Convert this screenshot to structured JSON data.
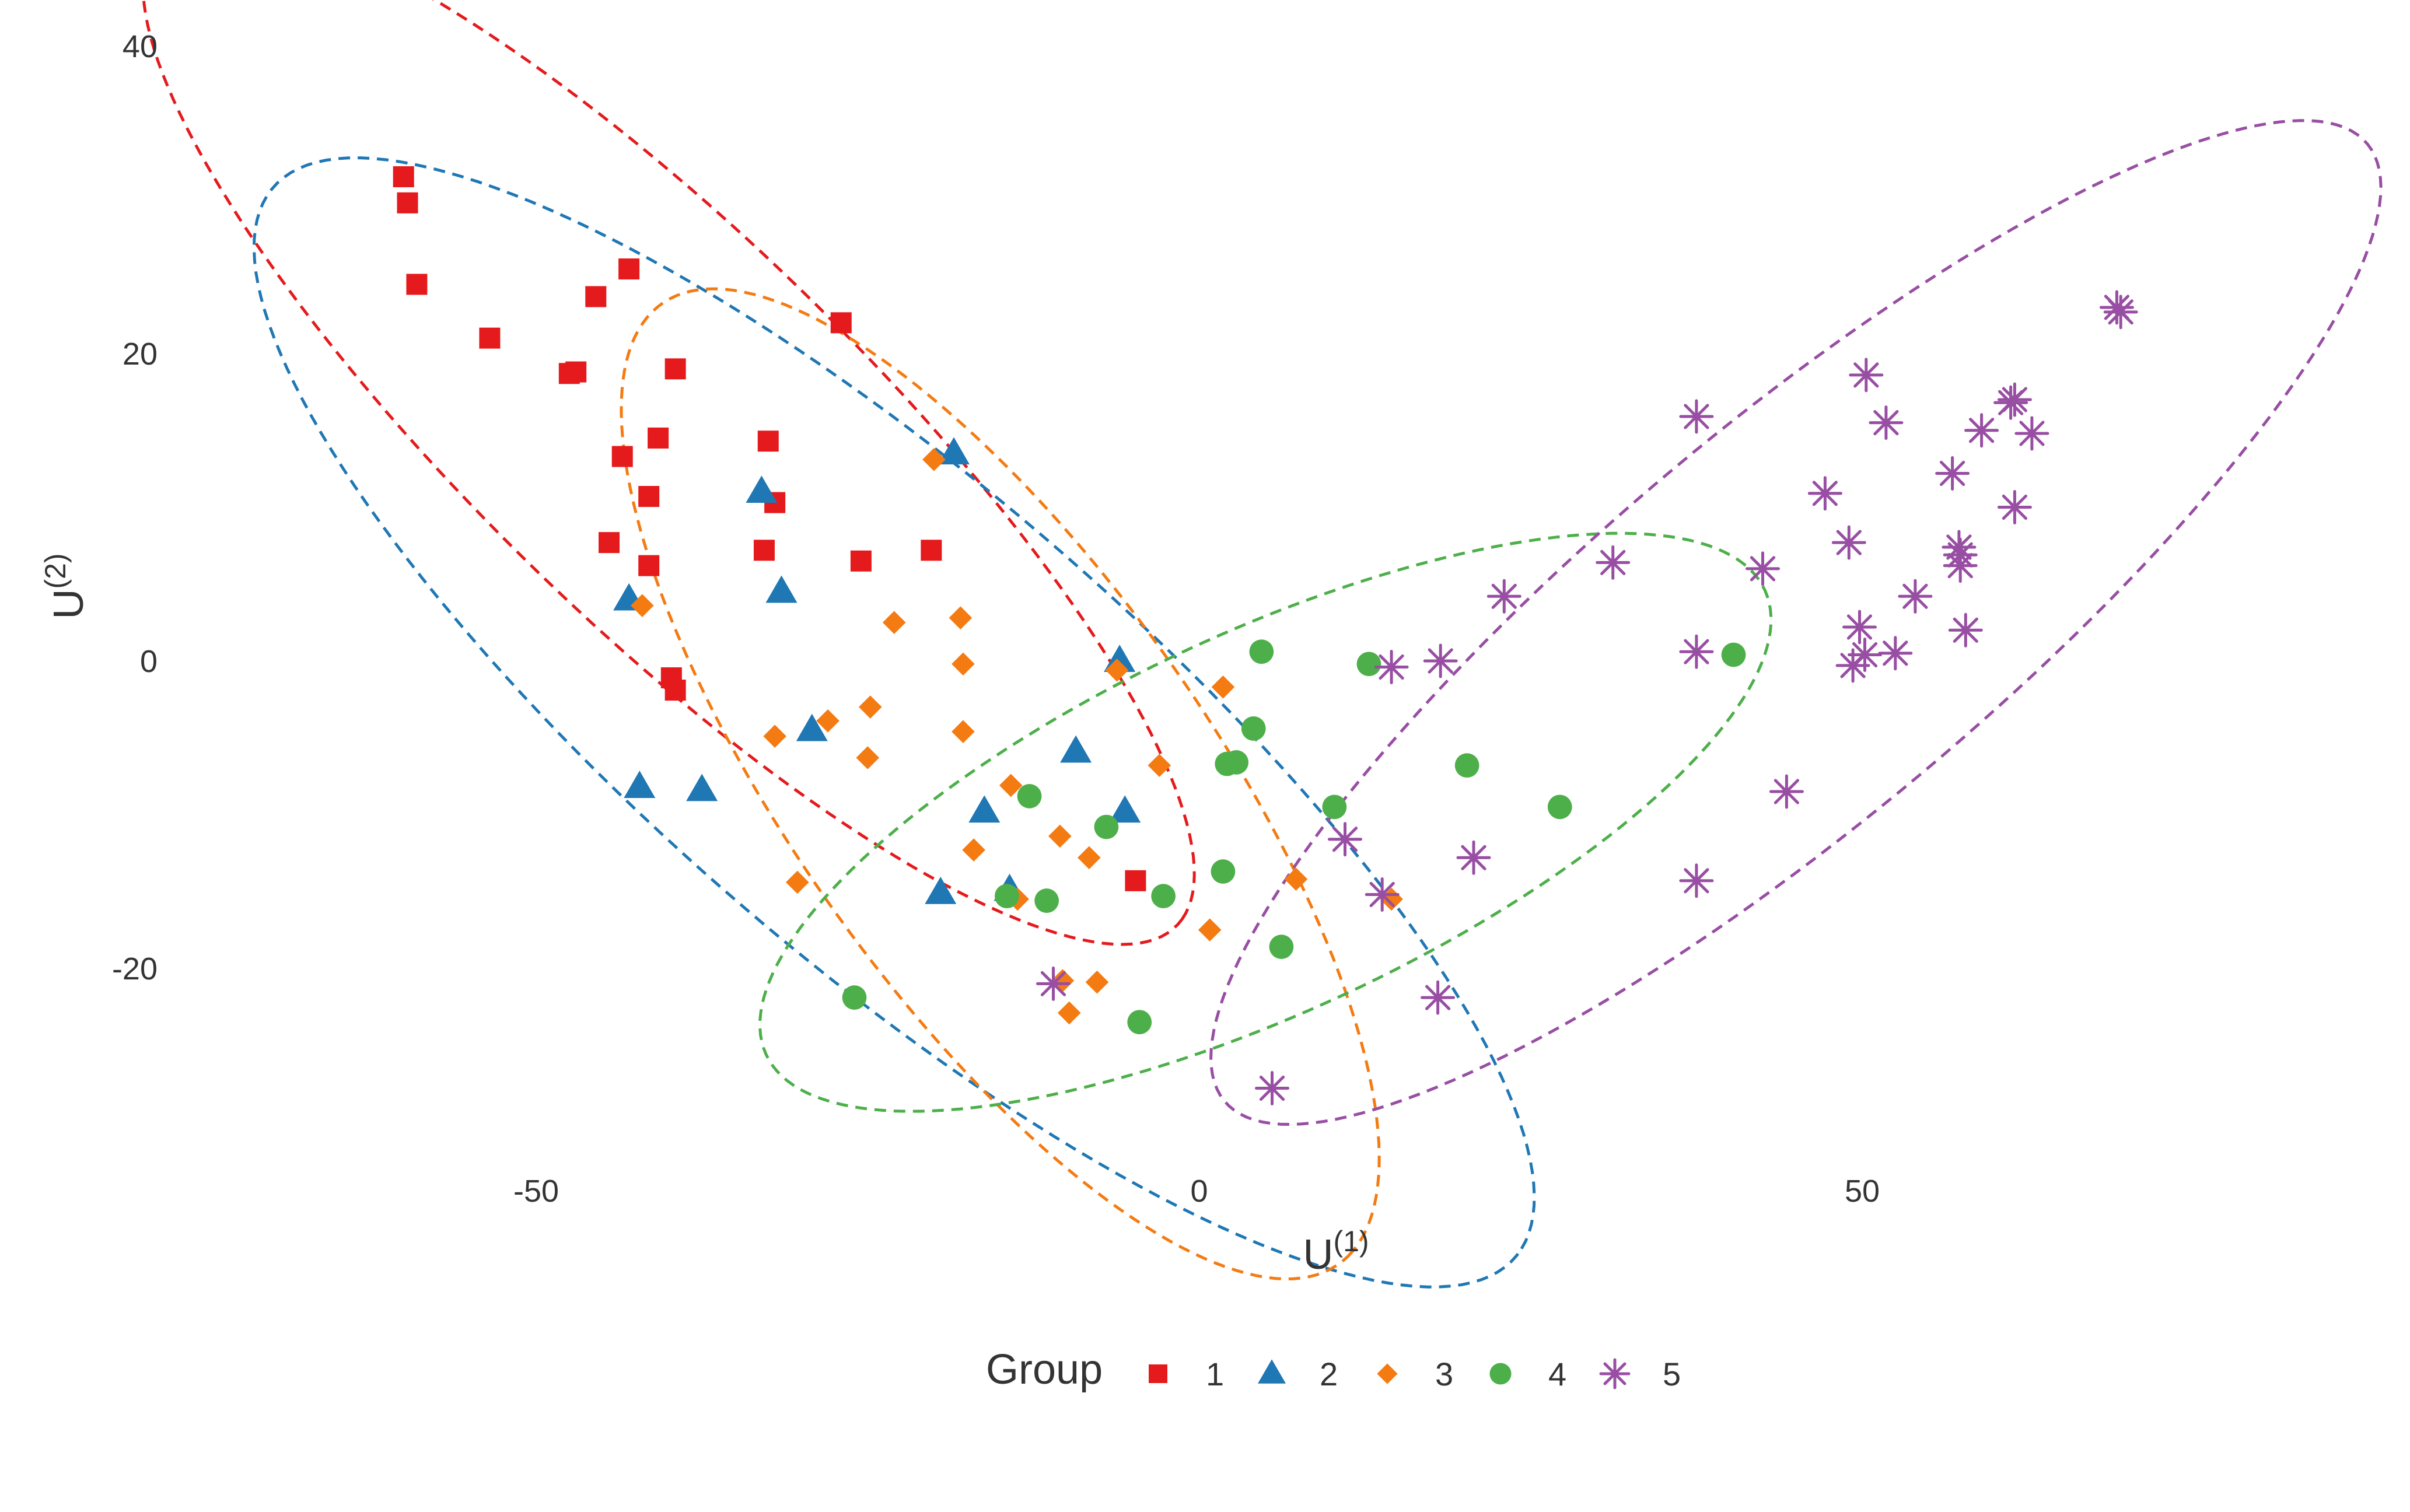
{
  "chart_data": {
    "type": "scatter",
    "title": "",
    "xlabel": "U",
    "xlabel_sup": "(1)",
    "ylabel": "U",
    "ylabel_sup": "(2)",
    "xlim": [
      -90,
      90
    ],
    "ylim": [
      -35,
      41
    ],
    "x_ticks": [
      -50,
      0,
      50
    ],
    "y_ticks": [
      -20,
      0,
      20,
      40
    ],
    "grid": false,
    "legend": {
      "title": "Group",
      "position": "bottom"
    },
    "series": [
      {
        "name": "1",
        "color": "#E41A1C",
        "marker": "square",
        "points": [
          [
            -60,
            31.5
          ],
          [
            -59.7,
            29.8
          ],
          [
            -59,
            24.5
          ],
          [
            -53.5,
            21
          ],
          [
            -47.5,
            18.7
          ],
          [
            -47,
            18.8
          ],
          [
            -45.5,
            23.7
          ],
          [
            -43,
            25.5
          ],
          [
            -39.5,
            19
          ],
          [
            -27,
            22
          ],
          [
            -32.5,
            14.3
          ],
          [
            -40.8,
            14.5
          ],
          [
            -43.5,
            13.3
          ],
          [
            -41.5,
            10.7
          ],
          [
            -32,
            10.3
          ],
          [
            -44.5,
            7.7
          ],
          [
            -41.5,
            6.2
          ],
          [
            -32.8,
            7.2
          ],
          [
            -25.5,
            6.5
          ],
          [
            -20.2,
            7.2
          ],
          [
            -39.8,
            -1.1
          ],
          [
            -39.5,
            -1.9
          ],
          [
            -4.8,
            -14.3
          ]
        ]
      },
      {
        "name": "2",
        "color": "#1F77B4",
        "marker": "triangle",
        "points": [
          [
            -18.5,
            13.5
          ],
          [
            -33,
            11
          ],
          [
            -31.5,
            4.5
          ],
          [
            -43,
            4
          ],
          [
            -6,
            0
          ],
          [
            -29.2,
            -4.5
          ],
          [
            -9.3,
            -5.9
          ],
          [
            -42.2,
            -8.2
          ],
          [
            -37.5,
            -8.4
          ],
          [
            -16.2,
            -9.8
          ],
          [
            -5.6,
            -9.8
          ],
          [
            -19.5,
            -15.1
          ],
          [
            -14.3,
            -14.9
          ]
        ]
      },
      {
        "name": "3",
        "color": "#F47B12",
        "marker": "diamond",
        "points": [
          [
            -20,
            13.1
          ],
          [
            -42,
            3.6
          ],
          [
            -23,
            2.5
          ],
          [
            -18,
            2.8
          ],
          [
            -17.8,
            -0.2
          ],
          [
            -6.2,
            -0.6
          ],
          [
            1.8,
            -1.7
          ],
          [
            -24.8,
            -3
          ],
          [
            -28,
            -3.9
          ],
          [
            -32,
            -4.9
          ],
          [
            -17.8,
            -4.6
          ],
          [
            -25,
            -6.3
          ],
          [
            -3,
            -6.8
          ],
          [
            -14.2,
            -8.1
          ],
          [
            -10.5,
            -11.4
          ],
          [
            -17,
            -12.3
          ],
          [
            -8.3,
            -12.8
          ],
          [
            7.3,
            -14.2
          ],
          [
            -30.3,
            -14.4
          ],
          [
            -13.7,
            -15.5
          ],
          [
            14.5,
            -15.5
          ],
          [
            0.8,
            -17.5
          ],
          [
            -10.3,
            -20.8
          ],
          [
            -7.7,
            -20.9
          ],
          [
            -9.8,
            -22.9
          ]
        ]
      },
      {
        "name": "4",
        "color": "#4DAF4A",
        "marker": "circle",
        "points": [
          [
            4.7,
            0.6
          ],
          [
            12.8,
            -0.2
          ],
          [
            40.3,
            0.4
          ],
          [
            4.1,
            -4.4
          ],
          [
            2.1,
            -6.7
          ],
          [
            2.8,
            -6.6
          ],
          [
            20.2,
            -6.8
          ],
          [
            27.2,
            -9.5
          ],
          [
            10.2,
            -9.5
          ],
          [
            -12.8,
            -8.8
          ],
          [
            -7,
            -10.8
          ],
          [
            1.8,
            -13.7
          ],
          [
            -14.5,
            -15.3
          ],
          [
            -11.5,
            -15.6
          ],
          [
            -2.7,
            -15.3
          ],
          [
            6.2,
            -18.6
          ],
          [
            -26,
            -21.9
          ],
          [
            -4.5,
            -23.5
          ]
        ]
      },
      {
        "name": "5",
        "color": "#984EA3",
        "marker": "asterisk",
        "points": [
          [
            69.2,
            23
          ],
          [
            69.5,
            22.7
          ],
          [
            50.3,
            18.6
          ],
          [
            61.5,
            17
          ],
          [
            61.2,
            16.8
          ],
          [
            37.5,
            15.9
          ],
          [
            51.8,
            15.5
          ],
          [
            59,
            15
          ],
          [
            62.8,
            14.8
          ],
          [
            56.8,
            12.2
          ],
          [
            47.2,
            10.9
          ],
          [
            61.5,
            10
          ],
          [
            49,
            7.7
          ],
          [
            57.3,
            7.4
          ],
          [
            57.4,
            6.9
          ],
          [
            57.4,
            6.2
          ],
          [
            31.2,
            6.4
          ],
          [
            42.5,
            6
          ],
          [
            23,
            4.2
          ],
          [
            54,
            4.2
          ],
          [
            49.8,
            2.2
          ],
          [
            57.8,
            2
          ],
          [
            37.5,
            0.6
          ],
          [
            52.5,
            0.5
          ],
          [
            50.2,
            0.4
          ],
          [
            49.3,
            -0.3
          ],
          [
            18.2,
            0
          ],
          [
            14.5,
            -0.4
          ],
          [
            44.3,
            -8.5
          ],
          [
            11,
            -11.6
          ],
          [
            20.7,
            -12.8
          ],
          [
            37.5,
            -14.3
          ],
          [
            13.8,
            -15.2
          ],
          [
            -11,
            -21
          ],
          [
            18,
            -21.9
          ],
          [
            5.5,
            -27.8
          ]
        ]
      }
    ],
    "ellipses": [
      {
        "group": "1",
        "color": "#E41A1C",
        "center": [
          -40,
          15
        ],
        "angle": -39.4,
        "a": 50.1,
        "b": 13.4
      },
      {
        "group": "2",
        "color": "#1F77B4",
        "center": [
          -23,
          -4
        ],
        "angle": -35.9,
        "a": 58.4,
        "b": 16.4
      },
      {
        "group": "3",
        "color": "#F47B12",
        "center": [
          -15,
          -8
        ],
        "angle": -49.5,
        "a": 40.4,
        "b": 14.9
      },
      {
        "group": "4",
        "color": "#4DAF4A",
        "center": [
          5,
          -10.5
        ],
        "angle": 21.2,
        "a": 40.6,
        "b": 12.6
      },
      {
        "group": "5",
        "color": "#984EA3",
        "center": [
          45,
          2.5
        ],
        "angle": 35.3,
        "a": 53.2,
        "b": 13.5
      }
    ]
  }
}
